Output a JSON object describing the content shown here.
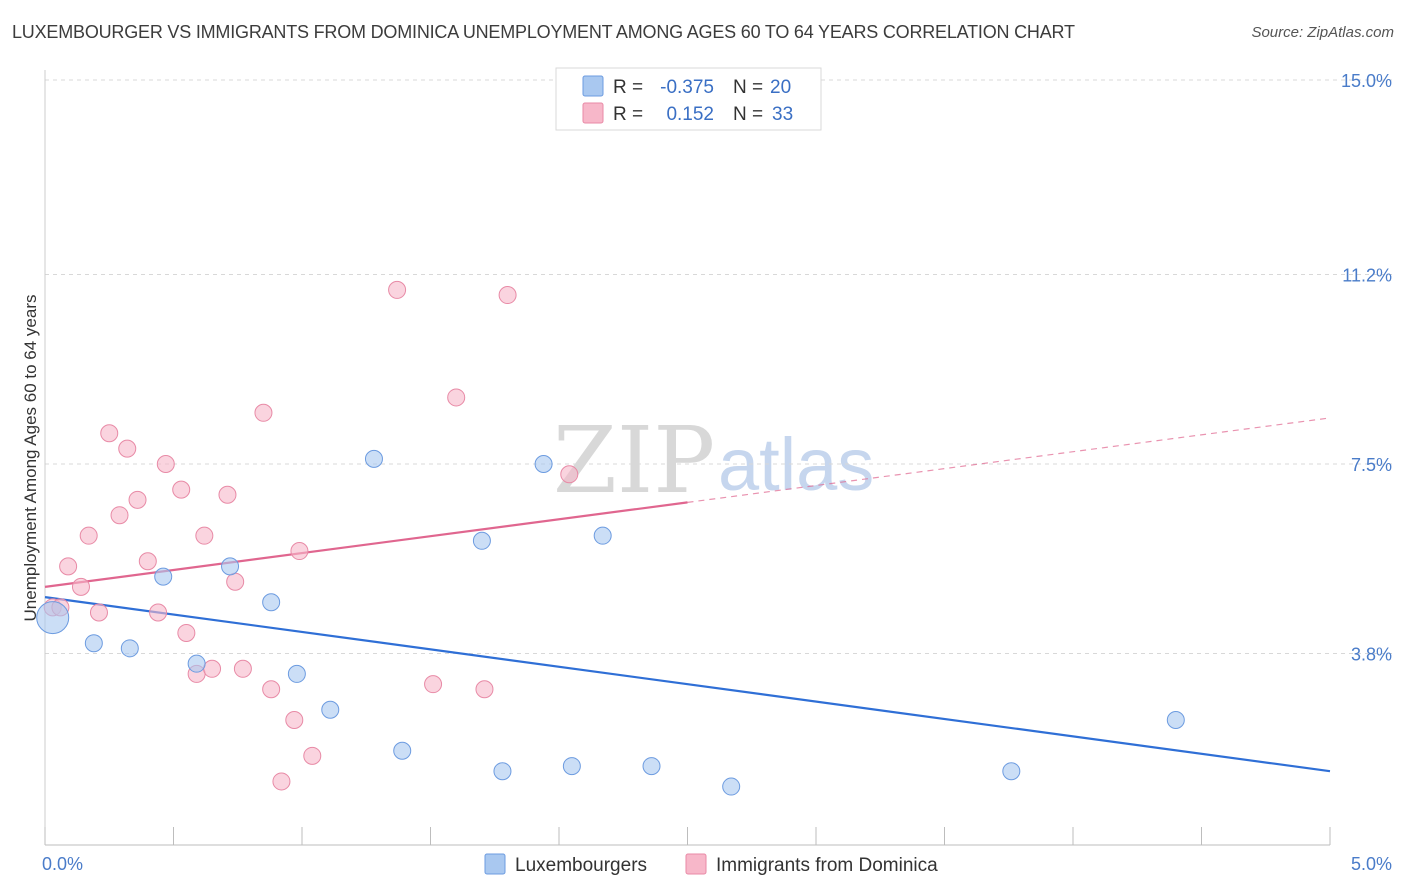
{
  "title": "LUXEMBOURGER VS IMMIGRANTS FROM DOMINICA UNEMPLOYMENT AMONG AGES 60 TO 64 YEARS CORRELATION CHART",
  "source": "Source: ZipAtlas.com",
  "watermark": {
    "zip": "ZIP",
    "atlas": "atlas"
  },
  "legend": {
    "rows": [
      {
        "r_label": "R =",
        "r_value": "-0.375",
        "n_label": "N =",
        "n_value": "20",
        "color": "#a9c8f0"
      },
      {
        "r_label": "R =",
        "r_value": "0.152",
        "n_label": "N =",
        "n_value": "33",
        "color": "#f7b7c9"
      }
    ]
  },
  "bottom_legend": {
    "items": [
      {
        "label": "Luxembourgers",
        "color": "#a9c8f0"
      },
      {
        "label": "Immigrants from Dominica",
        "color": "#f7b7c9"
      }
    ]
  },
  "chart_data": {
    "type": "scatter",
    "title": "LUXEMBOURGER VS IMMIGRANTS FROM DOMINICA UNEMPLOYMENT AMONG AGES 60 TO 64 YEARS CORRELATION CHART",
    "xlabel": "",
    "ylabel": "Unemployment Among Ages 60 to 64 years",
    "xlim": [
      0,
      5
    ],
    "ylim": [
      0,
      15.4
    ],
    "x_tick_labels": [
      "0.0%",
      "5.0%"
    ],
    "y_ticks": [
      3.8,
      7.5,
      11.2,
      15.0
    ],
    "y_tick_labels": [
      "3.8%",
      "7.5%",
      "11.2%",
      "15.0%"
    ],
    "grid": true,
    "series": [
      {
        "name": "Luxembourgers",
        "color": "#a9c8f0",
        "stroke": "#6c9be0",
        "line_color": "#2f6fd6",
        "trend": {
          "x0": 0.0,
          "y0": 4.9,
          "x1": 5.0,
          "y1": 1.5,
          "solid_until": 5.0
        },
        "points": [
          {
            "x": 0.03,
            "y": 4.5,
            "big": true
          },
          {
            "x": 0.19,
            "y": 4.0
          },
          {
            "x": 0.33,
            "y": 3.9
          },
          {
            "x": 0.46,
            "y": 5.3
          },
          {
            "x": 0.59,
            "y": 3.6
          },
          {
            "x": 0.72,
            "y": 5.5
          },
          {
            "x": 0.88,
            "y": 4.8
          },
          {
            "x": 0.98,
            "y": 3.4
          },
          {
            "x": 1.11,
            "y": 2.7
          },
          {
            "x": 1.28,
            "y": 7.6
          },
          {
            "x": 1.39,
            "y": 1.9
          },
          {
            "x": 1.7,
            "y": 6.0
          },
          {
            "x": 1.78,
            "y": 1.5
          },
          {
            "x": 1.94,
            "y": 7.5
          },
          {
            "x": 2.05,
            "y": 1.6
          },
          {
            "x": 2.17,
            "y": 6.1
          },
          {
            "x": 2.36,
            "y": 1.6
          },
          {
            "x": 2.67,
            "y": 1.2
          },
          {
            "x": 3.76,
            "y": 1.5
          },
          {
            "x": 4.4,
            "y": 2.5
          }
        ]
      },
      {
        "name": "Immigrants from Dominica",
        "color": "#f7b7c9",
        "stroke": "#e88aa6",
        "line_color": "#e0668f",
        "trend": {
          "x0": 0.0,
          "y0": 5.1,
          "x1": 5.0,
          "y1": 8.4,
          "solid_until": 2.5
        },
        "points": [
          {
            "x": 0.03,
            "y": 4.7
          },
          {
            "x": 0.06,
            "y": 4.7
          },
          {
            "x": 0.09,
            "y": 5.5
          },
          {
            "x": 0.14,
            "y": 5.1
          },
          {
            "x": 0.17,
            "y": 6.1
          },
          {
            "x": 0.21,
            "y": 4.6
          },
          {
            "x": 0.25,
            "y": 8.1
          },
          {
            "x": 0.29,
            "y": 6.5
          },
          {
            "x": 0.32,
            "y": 7.8
          },
          {
            "x": 0.36,
            "y": 6.8
          },
          {
            "x": 0.4,
            "y": 5.6
          },
          {
            "x": 0.44,
            "y": 4.6
          },
          {
            "x": 0.47,
            "y": 7.5
          },
          {
            "x": 0.53,
            "y": 7.0
          },
          {
            "x": 0.55,
            "y": 4.2
          },
          {
            "x": 0.59,
            "y": 3.4
          },
          {
            "x": 0.62,
            "y": 6.1
          },
          {
            "x": 0.65,
            "y": 3.5
          },
          {
            "x": 0.71,
            "y": 6.9
          },
          {
            "x": 0.74,
            "y": 5.2
          },
          {
            "x": 0.77,
            "y": 3.5
          },
          {
            "x": 0.85,
            "y": 8.5
          },
          {
            "x": 0.88,
            "y": 3.1
          },
          {
            "x": 0.92,
            "y": 1.3
          },
          {
            "x": 0.97,
            "y": 2.5
          },
          {
            "x": 0.99,
            "y": 5.8
          },
          {
            "x": 1.04,
            "y": 1.8
          },
          {
            "x": 1.37,
            "y": 10.9
          },
          {
            "x": 1.51,
            "y": 3.2
          },
          {
            "x": 1.6,
            "y": 8.8
          },
          {
            "x": 1.71,
            "y": 3.1
          },
          {
            "x": 1.8,
            "y": 10.8
          },
          {
            "x": 2.04,
            "y": 7.3
          }
        ]
      }
    ]
  }
}
